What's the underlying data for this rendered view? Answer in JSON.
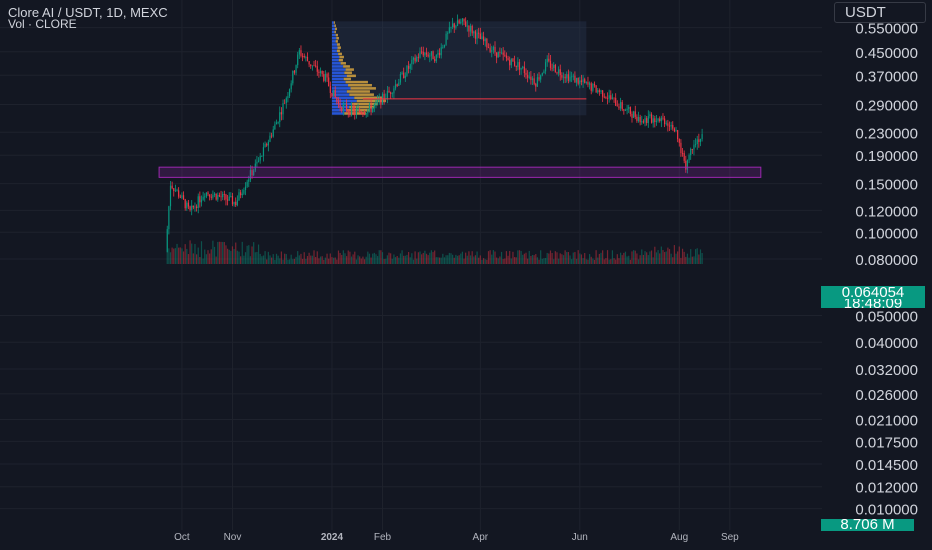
{
  "header": {
    "title": "Clore AI / USDT, 1D, MEXC",
    "volume_label": "Vol · CLORE"
  },
  "currency": "USDT",
  "last_price": {
    "value": "0.064054",
    "countdown": "18:48:09",
    "color": "#089981"
  },
  "volume_value": "8.706 M",
  "colors": {
    "background": "#131722",
    "grid": "#1e222d",
    "up": "#089981",
    "down": "#f23645",
    "support_zone": "#9c27b0",
    "profile_blue": "#2962ff",
    "profile_gold": "#d4a240"
  },
  "chart_data": {
    "type": "candlestick",
    "title": "Clore AI / USDT, 1D, MEXC",
    "yscale": "log",
    "ylim": [
      0.0094,
      0.67
    ],
    "y_ticks": [
      "0.550000",
      "0.450000",
      "0.370000",
      "0.290000",
      "0.230000",
      "0.190000",
      "0.150000",
      "0.120000",
      "0.100000",
      "0.080000",
      "0.050000",
      "0.040000",
      "0.032000",
      "0.026000",
      "0.021000",
      "0.017500",
      "0.014500",
      "0.012000",
      "0.010000"
    ],
    "x_ticks": [
      "Oct",
      "Nov",
      "2024",
      "Feb",
      "Apr",
      "Jun",
      "Aug",
      "Sep"
    ],
    "price_path": [
      {
        "date": "2023-09-21",
        "close": 0.085
      },
      {
        "date": "2023-09-24",
        "close": 0.15
      },
      {
        "date": "2023-09-30",
        "close": 0.135
      },
      {
        "date": "2023-10-06",
        "close": 0.118
      },
      {
        "date": "2023-10-15",
        "close": 0.14
      },
      {
        "date": "2023-10-25",
        "close": 0.134
      },
      {
        "date": "2023-11-03",
        "close": 0.128
      },
      {
        "date": "2023-11-10",
        "close": 0.155
      },
      {
        "date": "2023-11-18",
        "close": 0.185
      },
      {
        "date": "2023-11-28",
        "close": 0.25
      },
      {
        "date": "2023-12-05",
        "close": 0.32
      },
      {
        "date": "2023-12-12",
        "close": 0.45
      },
      {
        "date": "2023-12-20",
        "close": 0.4
      },
      {
        "date": "2023-12-28",
        "close": 0.36
      },
      {
        "date": "2024-01-05",
        "close": 0.29
      },
      {
        "date": "2024-01-15",
        "close": 0.27
      },
      {
        "date": "2024-01-25",
        "close": 0.28
      },
      {
        "date": "2024-02-05",
        "close": 0.32
      },
      {
        "date": "2024-02-15",
        "close": 0.38
      },
      {
        "date": "2024-02-25",
        "close": 0.45
      },
      {
        "date": "2024-03-05",
        "close": 0.43
      },
      {
        "date": "2024-03-15",
        "close": 0.56
      },
      {
        "date": "2024-03-22",
        "close": 0.575
      },
      {
        "date": "2024-04-01",
        "close": 0.5
      },
      {
        "date": "2024-04-12",
        "close": 0.44
      },
      {
        "date": "2024-04-25",
        "close": 0.4
      },
      {
        "date": "2024-05-05",
        "close": 0.35
      },
      {
        "date": "2024-05-12",
        "close": 0.41
      },
      {
        "date": "2024-05-20",
        "close": 0.38
      },
      {
        "date": "2024-06-01",
        "close": 0.35
      },
      {
        "date": "2024-06-15",
        "close": 0.32
      },
      {
        "date": "2024-06-28",
        "close": 0.28
      },
      {
        "date": "2024-07-10",
        "close": 0.255
      },
      {
        "date": "2024-07-20",
        "close": 0.26
      },
      {
        "date": "2024-07-28",
        "close": 0.245
      },
      {
        "date": "2024-08-05",
        "close": 0.175
      },
      {
        "date": "2024-08-10",
        "close": 0.215
      },
      {
        "date": "2024-08-15",
        "close": 0.22
      }
    ],
    "annotations": {
      "support_zone": {
        "from": "2023-09-17",
        "to": "2024-09-20",
        "low": 0.158,
        "high": 0.172
      },
      "volume_profile_range": {
        "from": "2024-01-01",
        "to": "2024-06-05",
        "low": 0.265,
        "high": 0.58
      },
      "poc_line": {
        "from": "2024-01-20",
        "to": "2024-06-05",
        "price": 0.304
      }
    }
  }
}
